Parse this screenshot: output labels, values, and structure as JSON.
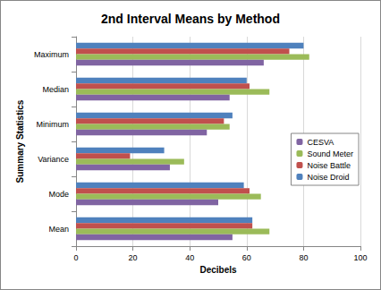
{
  "chart_data": {
    "type": "bar",
    "orientation": "horizontal",
    "title": "2nd Interval Means by Method",
    "x_label": "Decibels",
    "y_label": "Summary Statistics",
    "categories": [
      "Mean",
      "Mode",
      "Variance",
      "Minimum",
      "Median",
      "Maximum"
    ],
    "series": [
      {
        "name": "Noise Droid",
        "color": "#4f81bd",
        "values": [
          62,
          59,
          31,
          55,
          60,
          80
        ]
      },
      {
        "name": "Noise Battle",
        "color": "#c0504d",
        "values": [
          62,
          61,
          19,
          52,
          61,
          75
        ]
      },
      {
        "name": "Sound Meter",
        "color": "#9bbb59",
        "values": [
          68,
          65,
          38,
          54,
          68,
          82
        ]
      },
      {
        "name": "CESVA",
        "color": "#8064a2",
        "values": [
          55,
          50,
          33,
          46,
          54,
          66
        ]
      }
    ],
    "xlim": [
      0,
      100
    ],
    "xticks": [
      0,
      20,
      40,
      60,
      80,
      100
    ],
    "grid": true,
    "legend": "right"
  }
}
